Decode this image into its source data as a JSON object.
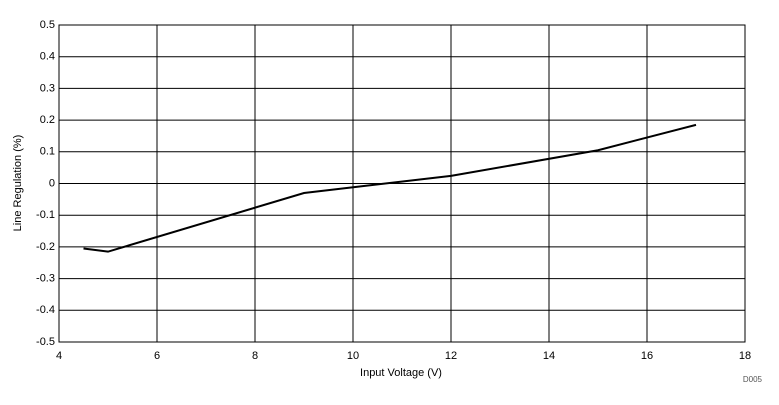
{
  "chart_data": {
    "type": "line",
    "xlabel": "Input Voltage (V)",
    "ylabel": "Line Regulation (%)",
    "annotation": "D005",
    "x": [
      4.5,
      5,
      9,
      12,
      15,
      17
    ],
    "series": [
      {
        "color": "#000000",
        "values": [
          -0.205,
          -0.215,
          -0.03,
          0.024,
          0.105,
          0.185
        ]
      }
    ],
    "xlim": [
      4,
      18
    ],
    "xticks": [
      4,
      6,
      8,
      10,
      12,
      14,
      16,
      18
    ],
    "ylim": [
      -0.5,
      0.5
    ],
    "yticks": [
      -0.5,
      -0.4,
      -0.3,
      -0.2,
      -0.1,
      0,
      0.1,
      0.2,
      0.3,
      0.4,
      0.5
    ],
    "grid": true
  }
}
